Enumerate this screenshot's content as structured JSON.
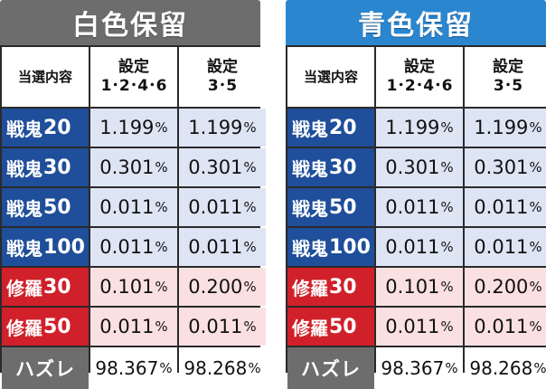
{
  "panels": [
    {
      "title": "白色保留",
      "title_color": "#6d6d6d",
      "headers": {
        "col1": "当選内容",
        "col2_line1": "設定",
        "col2_line2": "1･2･4･6",
        "col3_line1": "設定",
        "col3_line2": "3･5"
      },
      "rows": [
        {
          "label_text": "戦鬼",
          "label_num": "20",
          "v1": "1.199",
          "v2": "1.199",
          "unit": "%",
          "kind": "blue"
        },
        {
          "label_text": "戦鬼",
          "label_num": "30",
          "v1": "0.301",
          "v2": "0.301",
          "unit": "%",
          "kind": "blue"
        },
        {
          "label_text": "戦鬼",
          "label_num": "50",
          "v1": "0.011",
          "v2": "0.011",
          "unit": "%",
          "kind": "blue"
        },
        {
          "label_text": "戦鬼",
          "label_num": "100",
          "v1": "0.011",
          "v2": "0.011",
          "unit": "%",
          "kind": "blue"
        },
        {
          "label_text": "修羅",
          "label_num": "30",
          "v1": "0.101",
          "v2": "0.200",
          "unit": "%",
          "kind": "red"
        },
        {
          "label_text": "修羅",
          "label_num": "50",
          "v1": "0.011",
          "v2": "0.011",
          "unit": "%",
          "kind": "red"
        },
        {
          "label_text": "ハズレ",
          "label_num": "",
          "v1": "98.367",
          "v2": "98.268",
          "unit": "%",
          "kind": "gray"
        }
      ]
    },
    {
      "title": "青色保留",
      "title_color": "#2b86d0",
      "headers": {
        "col1": "当選内容",
        "col2_line1": "設定",
        "col2_line2": "1･2･4･6",
        "col3_line1": "設定",
        "col3_line2": "3･5"
      },
      "rows": [
        {
          "label_text": "戦鬼",
          "label_num": "20",
          "v1": "1.199",
          "v2": "1.199",
          "unit": "%",
          "kind": "blue"
        },
        {
          "label_text": "戦鬼",
          "label_num": "30",
          "v1": "0.301",
          "v2": "0.301",
          "unit": "%",
          "kind": "blue"
        },
        {
          "label_text": "戦鬼",
          "label_num": "50",
          "v1": "0.011",
          "v2": "0.011",
          "unit": "%",
          "kind": "blue"
        },
        {
          "label_text": "戦鬼",
          "label_num": "100",
          "v1": "0.011",
          "v2": "0.011",
          "unit": "%",
          "kind": "blue"
        },
        {
          "label_text": "修羅",
          "label_num": "30",
          "v1": "0.101",
          "v2": "0.200",
          "unit": "%",
          "kind": "red"
        },
        {
          "label_text": "修羅",
          "label_num": "50",
          "v1": "0.011",
          "v2": "0.011",
          "unit": "%",
          "kind": "red"
        },
        {
          "label_text": "ハズレ",
          "label_num": "",
          "v1": "98.367",
          "v2": "98.268",
          "unit": "%",
          "kind": "gray"
        }
      ]
    }
  ]
}
